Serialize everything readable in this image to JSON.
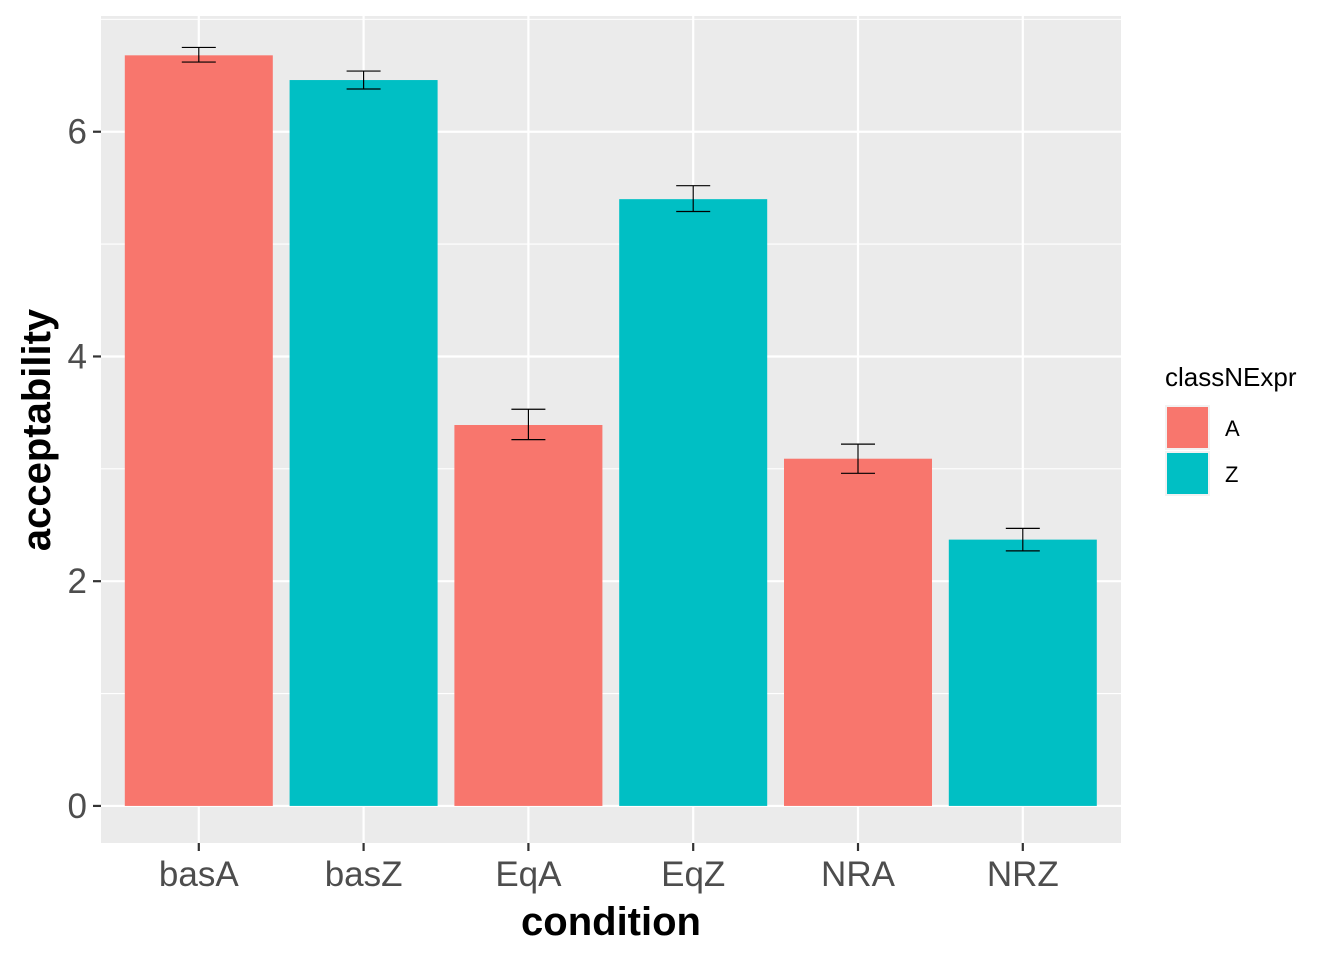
{
  "chart_data": {
    "type": "bar",
    "categories": [
      "basA",
      "basZ",
      "EqA",
      "EqZ",
      "NRA",
      "NRZ"
    ],
    "values": [
      6.68,
      6.46,
      3.39,
      5.4,
      3.09,
      2.37
    ],
    "error_low": [
      6.62,
      6.38,
      3.26,
      5.29,
      2.96,
      2.27
    ],
    "error_high": [
      6.75,
      6.54,
      3.53,
      5.52,
      3.22,
      2.47
    ],
    "fill_group": [
      "A",
      "Z",
      "A",
      "Z",
      "A",
      "Z"
    ],
    "xlabel": "condition",
    "ylabel": "acceptability",
    "ylim": [
      -0.33,
      7.03
    ],
    "y_ticks": [
      0,
      2,
      4,
      6
    ],
    "y_tick_labels": [
      "0",
      "2",
      "4",
      "6"
    ],
    "grid": true,
    "legend": {
      "title": "classNExpr",
      "placement": "right",
      "entries": [
        {
          "label": "A",
          "color": "#F8766D"
        },
        {
          "label": "Z",
          "color": "#00BFC4"
        }
      ]
    },
    "colors": {
      "A": "#F8766D",
      "Z": "#00BFC4",
      "panel": "#EBEBEB",
      "grid": "#FFFFFF"
    }
  }
}
